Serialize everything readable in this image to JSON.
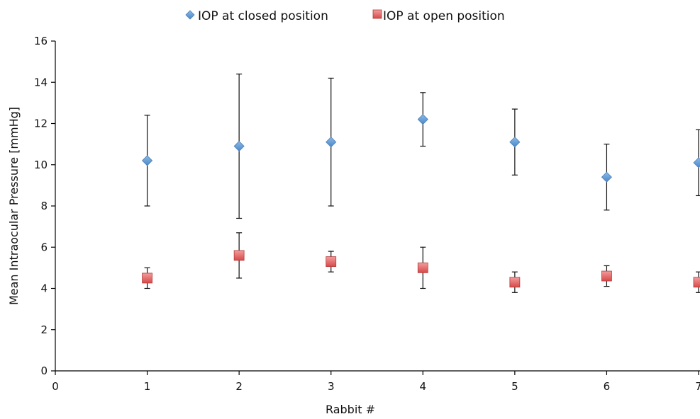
{
  "chart_data": {
    "type": "scatter",
    "xlabel": "Rabbit #",
    "ylabel": "Mean Intraocular Pressure [mmHg]",
    "xlim": [
      0,
      7
    ],
    "ylim": [
      0,
      16
    ],
    "x_ticks": [
      "0",
      "1",
      "2",
      "3",
      "4",
      "5",
      "6",
      "7"
    ],
    "y_ticks": [
      "0",
      "2",
      "4",
      "6",
      "8",
      "10",
      "12",
      "14",
      "16"
    ],
    "grid": false,
    "legend_position": "top-center",
    "series": [
      {
        "name": "IOP at closed position",
        "marker": "diamond",
        "color": "#5b9bd5",
        "x": [
          1,
          2,
          3,
          4,
          5,
          6,
          7
        ],
        "y": [
          10.2,
          10.9,
          11.1,
          12.2,
          11.1,
          9.4,
          10.1
        ],
        "err_low": [
          8.0,
          7.4,
          8.0,
          10.9,
          9.5,
          7.8,
          8.5
        ],
        "err_high": [
          12.4,
          14.4,
          14.2,
          13.5,
          12.7,
          11.0,
          11.7
        ]
      },
      {
        "name": "IOP at open position",
        "marker": "square",
        "color": "#e05a5a",
        "x": [
          1,
          2,
          3,
          4,
          5,
          6,
          7
        ],
        "y": [
          4.5,
          5.6,
          5.3,
          5.0,
          4.3,
          4.6,
          4.3
        ],
        "err_low": [
          4.0,
          4.5,
          4.8,
          4.0,
          3.8,
          4.1,
          3.8
        ],
        "err_high": [
          5.0,
          6.7,
          5.8,
          6.0,
          4.8,
          5.1,
          4.8
        ]
      }
    ]
  }
}
